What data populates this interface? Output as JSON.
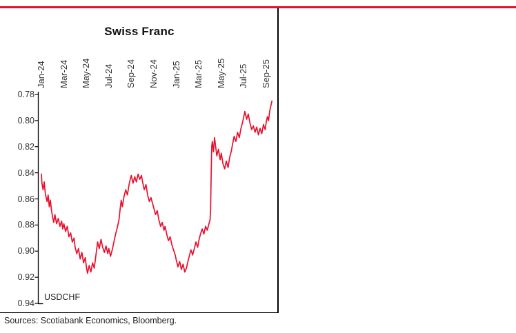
{
  "colors": {
    "accent": "#E8112D",
    "axis": "#000000",
    "tick_text": "#333333"
  },
  "chart_data": {
    "type": "line",
    "title": "Swiss Franc",
    "series_label": "USDCHF",
    "line_color": "#E8112D",
    "legend_position": "none",
    "grid": false,
    "y_axis_inverted": true,
    "y_domain": [
      0.78,
      0.94
    ],
    "y_tick_labels": [
      "0.78",
      "0.80",
      "0.82",
      "0.84",
      "0.86",
      "0.88",
      "0.90",
      "0.92",
      "0.94"
    ],
    "x_tick_labels": [
      "Jan-24",
      "Mar-24",
      "May-24",
      "Jul-24",
      "Sep-24",
      "Nov-24",
      "Jan-25",
      "Mar-25",
      "May-25",
      "Jul-25",
      "Sep-25"
    ],
    "x_tick_positions": [
      0,
      2,
      4,
      6,
      8,
      10,
      12,
      14,
      16,
      18,
      20
    ],
    "x_domain_months": [
      0,
      20.5
    ],
    "points": [
      [
        0,
        0.841
      ],
      [
        0.05,
        0.848
      ],
      [
        0.15,
        0.853
      ],
      [
        0.25,
        0.847
      ],
      [
        0.35,
        0.856
      ],
      [
        0.5,
        0.862
      ],
      [
        0.6,
        0.857
      ],
      [
        0.7,
        0.866
      ],
      [
        0.8,
        0.861
      ],
      [
        0.9,
        0.869
      ],
      [
        1,
        0.874
      ],
      [
        1.1,
        0.878
      ],
      [
        1.2,
        0.872
      ],
      [
        1.35,
        0.879
      ],
      [
        1.5,
        0.875
      ],
      [
        1.65,
        0.881
      ],
      [
        1.8,
        0.877
      ],
      [
        1.9,
        0.883
      ],
      [
        2,
        0.879
      ],
      [
        2.15,
        0.885
      ],
      [
        2.3,
        0.881
      ],
      [
        2.45,
        0.889
      ],
      [
        2.6,
        0.886
      ],
      [
        2.75,
        0.893
      ],
      [
        2.9,
        0.89
      ],
      [
        3,
        0.897
      ],
      [
        3.15,
        0.902
      ],
      [
        3.3,
        0.898
      ],
      [
        3.45,
        0.906
      ],
      [
        3.6,
        0.901
      ],
      [
        3.75,
        0.909
      ],
      [
        3.9,
        0.905
      ],
      [
        4,
        0.912
      ],
      [
        4.1,
        0.917
      ],
      [
        4.25,
        0.911
      ],
      [
        4.4,
        0.916
      ],
      [
        4.55,
        0.909
      ],
      [
        4.7,
        0.913
      ],
      [
        4.85,
        0.903
      ],
      [
        5,
        0.893
      ],
      [
        5.15,
        0.898
      ],
      [
        5.3,
        0.891
      ],
      [
        5.45,
        0.897
      ],
      [
        5.6,
        0.901
      ],
      [
        5.75,
        0.896
      ],
      [
        5.9,
        0.902
      ],
      [
        6,
        0.898
      ],
      [
        6.15,
        0.904
      ],
      [
        6.3,
        0.899
      ],
      [
        6.45,
        0.893
      ],
      [
        6.6,
        0.887
      ],
      [
        6.75,
        0.882
      ],
      [
        6.9,
        0.876
      ],
      [
        7,
        0.868
      ],
      [
        7.1,
        0.861
      ],
      [
        7.2,
        0.866
      ],
      [
        7.35,
        0.858
      ],
      [
        7.5,
        0.853
      ],
      [
        7.65,
        0.857
      ],
      [
        7.8,
        0.849
      ],
      [
        7.9,
        0.845
      ],
      [
        8,
        0.842
      ],
      [
        8.15,
        0.848
      ],
      [
        8.3,
        0.843
      ],
      [
        8.45,
        0.847
      ],
      [
        8.6,
        0.841
      ],
      [
        8.75,
        0.845
      ],
      [
        8.9,
        0.842
      ],
      [
        9,
        0.847
      ],
      [
        9.15,
        0.853
      ],
      [
        9.3,
        0.849
      ],
      [
        9.45,
        0.857
      ],
      [
        9.6,
        0.862
      ],
      [
        9.75,
        0.859
      ],
      [
        9.9,
        0.864
      ],
      [
        10,
        0.867
      ],
      [
        10.15,
        0.872
      ],
      [
        10.3,
        0.869
      ],
      [
        10.45,
        0.876
      ],
      [
        10.6,
        0.881
      ],
      [
        10.75,
        0.878
      ],
      [
        10.9,
        0.884
      ],
      [
        11,
        0.881
      ],
      [
        11.15,
        0.887
      ],
      [
        11.3,
        0.892
      ],
      [
        11.45,
        0.889
      ],
      [
        11.6,
        0.895
      ],
      [
        11.75,
        0.899
      ],
      [
        11.9,
        0.903
      ],
      [
        12,
        0.907
      ],
      [
        12.15,
        0.912
      ],
      [
        12.3,
        0.908
      ],
      [
        12.45,
        0.914
      ],
      [
        12.6,
        0.91
      ],
      [
        12.75,
        0.916
      ],
      [
        12.9,
        0.913
      ],
      [
        13,
        0.909
      ],
      [
        13.15,
        0.904
      ],
      [
        13.3,
        0.899
      ],
      [
        13.45,
        0.903
      ],
      [
        13.6,
        0.898
      ],
      [
        13.75,
        0.893
      ],
      [
        13.9,
        0.897
      ],
      [
        14,
        0.892
      ],
      [
        14.15,
        0.887
      ],
      [
        14.3,
        0.883
      ],
      [
        14.45,
        0.887
      ],
      [
        14.6,
        0.881
      ],
      [
        14.75,
        0.884
      ],
      [
        14.9,
        0.879
      ],
      [
        15,
        0.876
      ],
      [
        15.05,
        0.868
      ],
      [
        15.1,
        0.842
      ],
      [
        15.15,
        0.82
      ],
      [
        15.2,
        0.816
      ],
      [
        15.3,
        0.824
      ],
      [
        15.4,
        0.813
      ],
      [
        15.5,
        0.82
      ],
      [
        15.6,
        0.827
      ],
      [
        15.75,
        0.822
      ],
      [
        15.9,
        0.83
      ],
      [
        16,
        0.825
      ],
      [
        16.15,
        0.833
      ],
      [
        16.3,
        0.837
      ],
      [
        16.45,
        0.831
      ],
      [
        16.6,
        0.836
      ],
      [
        16.75,
        0.828
      ],
      [
        16.9,
        0.823
      ],
      [
        17,
        0.818
      ],
      [
        17.15,
        0.812
      ],
      [
        17.3,
        0.816
      ],
      [
        17.45,
        0.809
      ],
      [
        17.6,
        0.813
      ],
      [
        17.75,
        0.806
      ],
      [
        17.9,
        0.801
      ],
      [
        18,
        0.797
      ],
      [
        18.1,
        0.793
      ],
      [
        18.25,
        0.799
      ],
      [
        18.4,
        0.795
      ],
      [
        18.55,
        0.802
      ],
      [
        18.7,
        0.807
      ],
      [
        18.85,
        0.804
      ],
      [
        19,
        0.809
      ],
      [
        19.15,
        0.805
      ],
      [
        19.3,
        0.811
      ],
      [
        19.45,
        0.806
      ],
      [
        19.6,
        0.81
      ],
      [
        19.75,
        0.803
      ],
      [
        19.9,
        0.807
      ],
      [
        20,
        0.801
      ],
      [
        20.1,
        0.797
      ],
      [
        20.2,
        0.8
      ],
      [
        20.3,
        0.793
      ],
      [
        20.4,
        0.789
      ],
      [
        20.5,
        0.785
      ]
    ],
    "sources": "Sources: Scotiabank Economics, Bloomberg."
  }
}
